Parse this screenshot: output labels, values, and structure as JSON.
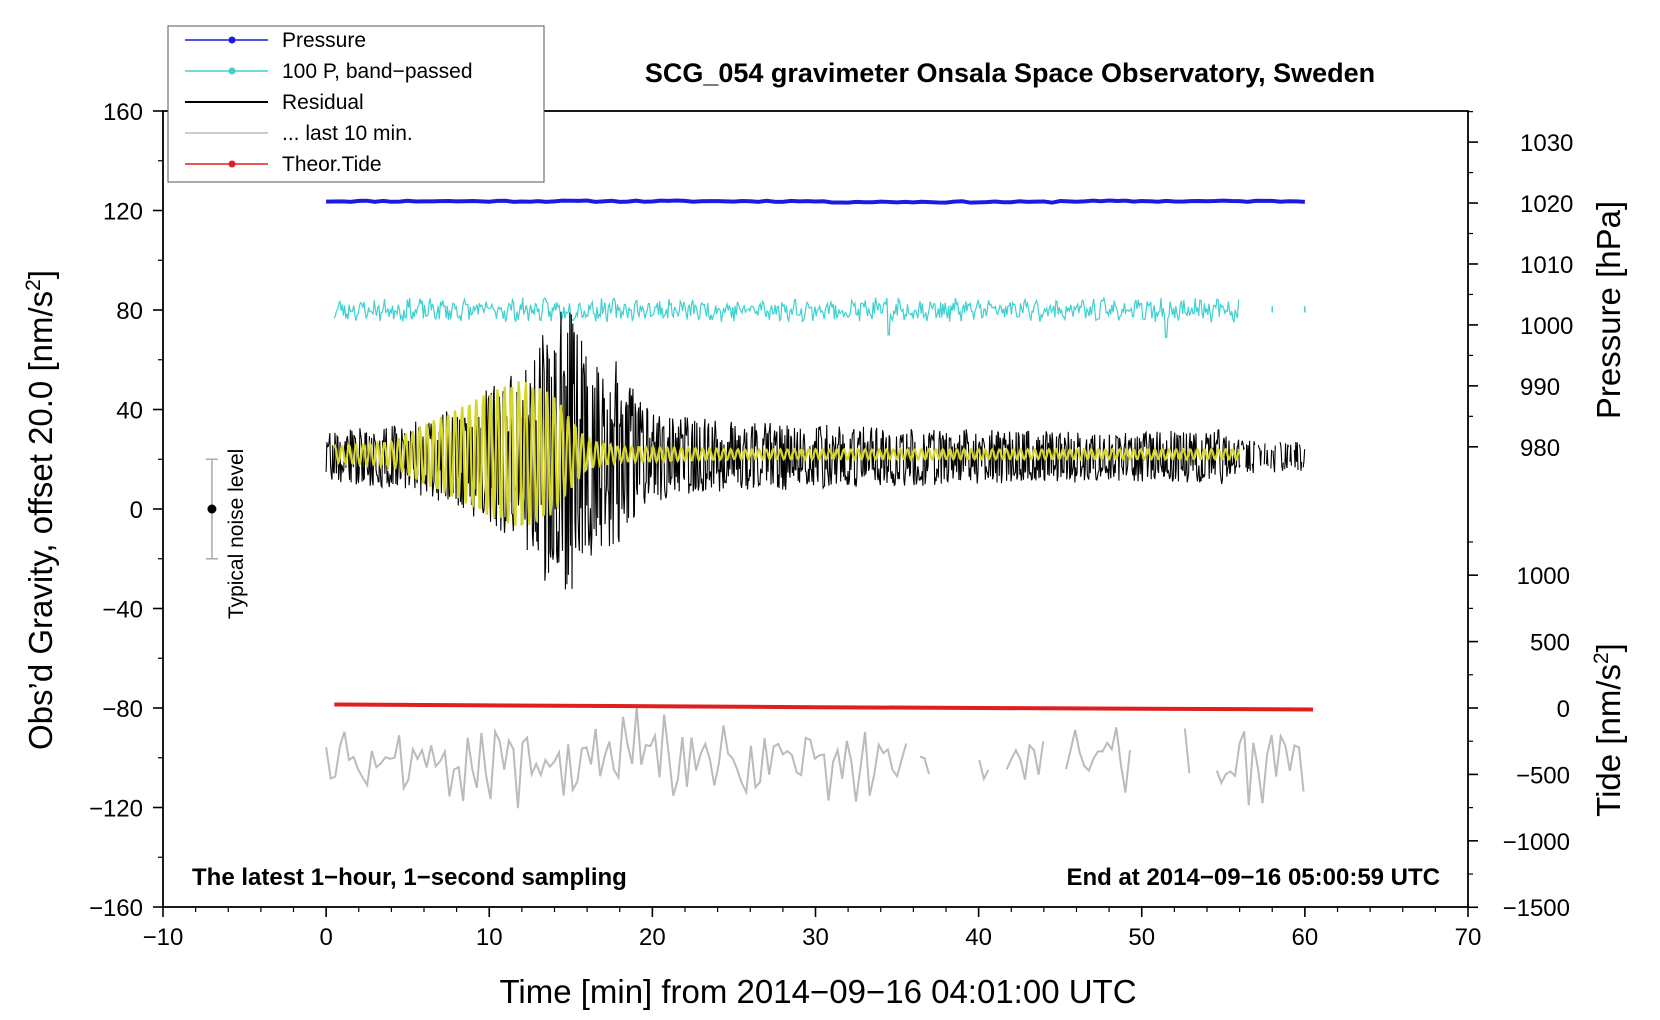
{
  "chart_data": {
    "type": "line",
    "title": "SCG_054 gravimeter Onsala Space Observatory, Sweden",
    "xlabel": "Time [min] from 2014−09−16 04:01:00 UTC",
    "ylabel_left": "Obs’d Gravity, offset 20.0 [nm/s²]",
    "ylabel_left_main": "Obs’d Gravity, offset 20.0 [nm/s",
    "ylabel_left_sup": "2",
    "ylabel_left_end": "]",
    "ylabel_pressure": "Pressure [hPa]",
    "ylabel_tide_main": "Tide [nm/s",
    "ylabel_tide_sup": "2",
    "ylabel_tide_end": "]",
    "xlim": [
      -10,
      70
    ],
    "ylim": [
      -160,
      160
    ],
    "x_ticks": [
      -10,
      0,
      10,
      20,
      30,
      40,
      50,
      60,
      70
    ],
    "x_tick_labels": [
      "−10",
      "0",
      "10",
      "20",
      "30",
      "40",
      "50",
      "60",
      "70"
    ],
    "y_ticks": [
      160,
      120,
      80,
      40,
      0,
      -40,
      -80,
      -120,
      -160
    ],
    "y_tick_labels": [
      "160",
      "120",
      "80",
      "40",
      "0",
      "−40",
      "−80",
      "−120",
      "−160"
    ],
    "pressure_axis": {
      "ticks": [
        1030,
        1020,
        1010,
        1000,
        990,
        980
      ],
      "tick_labels": [
        "1030",
        "1020",
        "1010",
        "1000",
        "990",
        "980"
      ],
      "gravity_at_1030": 147.5,
      "gravity_per_hpa": 2.45
    },
    "tide_axis": {
      "ticks": [
        1000,
        500,
        0,
        -500,
        -1000,
        -1500
      ],
      "tick_labels": [
        "1000",
        "500",
        "0",
        "−500",
        "−1000",
        "−1500"
      ],
      "gravity_at_0": -80.0,
      "gravity_per_unit": 0.0534
    },
    "legend": [
      {
        "label": "Pressure",
        "color": "#1a1ae0",
        "marker": true
      },
      {
        "label": "100 P, band−passed",
        "color": "#40d0d0",
        "marker": true
      },
      {
        "label": "Residual",
        "color": "#000000",
        "marker": false
      },
      {
        "label": "... last 10 min.",
        "color": "#bbbbbb",
        "marker": false
      },
      {
        "label": "Theor.Tide",
        "color": "#e02020",
        "marker": true
      }
    ],
    "series": [
      {
        "name": "Pressure",
        "color": "#1a1ae0",
        "level_hpa": 1020.3,
        "x_range": [
          0,
          60
        ]
      },
      {
        "name": "100 P, band-passed",
        "color": "#40d0d0",
        "center": 80,
        "x_range": [
          0.5,
          56
        ],
        "extra_points_x": [
          58,
          60
        ],
        "spikes": [
          {
            "x": 34.5,
            "y": 70
          },
          {
            "x": 51.5,
            "y": 69
          },
          {
            "x": 53.6,
            "y": 84
          }
        ]
      },
      {
        "name": "Residual",
        "color": "#000000",
        "center": 21,
        "x_range": [
          0,
          60
        ],
        "envelope_x": [
          0,
          5,
          8,
          10,
          12,
          13,
          14,
          15,
          16,
          17,
          18,
          19,
          20,
          25,
          30,
          40,
          50,
          55,
          56,
          60
        ],
        "envelope_amp": [
          10,
          14,
          20,
          28,
          35,
          45,
          60,
          58,
          45,
          35,
          40,
          25,
          18,
          14,
          13,
          11,
          10,
          11,
          7,
          6
        ]
      },
      {
        "name": "Residual (yellow overlay)",
        "color": "#d6d62a",
        "center": 22,
        "x_range": [
          0.5,
          56
        ],
        "envelope_x": [
          0,
          4,
          6,
          8,
          10,
          12,
          14,
          15,
          16,
          18,
          20,
          25,
          30,
          56
        ],
        "envelope_amp": [
          3,
          5,
          12,
          18,
          25,
          30,
          24,
          14,
          6,
          3,
          3,
          2,
          2,
          2
        ]
      },
      {
        "name": "... last 10 min.",
        "color": "#bbbbbb",
        "center": -102,
        "x_range": [
          0,
          60
        ],
        "gaps_x": [
          [
            35.8,
            36.2
          ],
          [
            37.2,
            39.8
          ],
          [
            40.8,
            41.6
          ],
          [
            44.2,
            45.2
          ],
          [
            49.4,
            52.4
          ],
          [
            53.2,
            54.5
          ]
        ]
      },
      {
        "name": "Theor.Tide",
        "color": "#e02020",
        "x": [
          0.5,
          10,
          20,
          30,
          40,
          50,
          60.5
        ],
        "tide_nm_s2": [
          26,
          20,
          13,
          6,
          0,
          -6,
          -11
        ]
      }
    ],
    "noise_level": {
      "label": "Typical noise level",
      "x": -7,
      "y": 0,
      "low": -20,
      "high": 20
    },
    "note_left": "The latest 1−hour, 1−second sampling",
    "note_right": "End at 2014−09−16 05:00:59 UTC"
  }
}
